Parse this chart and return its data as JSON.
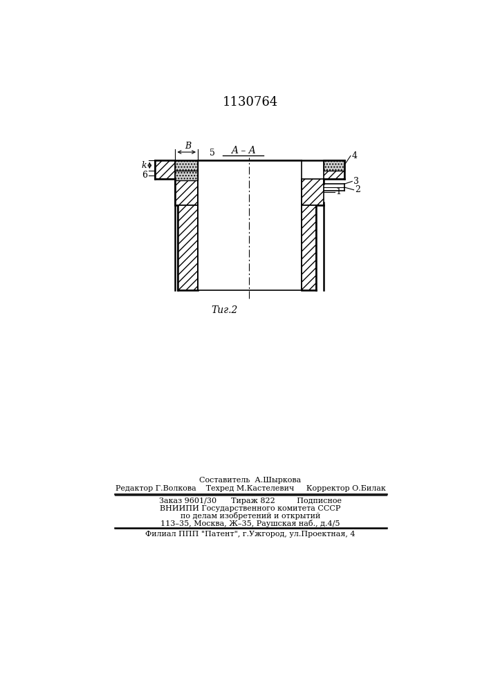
{
  "title": "1130764",
  "fig_label": "Τиг.2",
  "section_label": "A – A",
  "bg_color": "#ffffff",
  "line_color": "#000000",
  "footer_lines": [
    "Составитель  А.Шыркова",
    "Редактор Г.Волкова    Техред М.Кастелевич     Корректор О.Билак",
    "Заказ 9601/30      Тираж 822         Подписное",
    "ВНИИПИ Государственного комитета СССР",
    "по делам изобретений и открытий",
    "113–35, Москва, Ж–35, Раушская наб., д.4/5",
    "Филиал ППП \"Патент\", г.Ужгород, ул.Проектная, 4"
  ]
}
